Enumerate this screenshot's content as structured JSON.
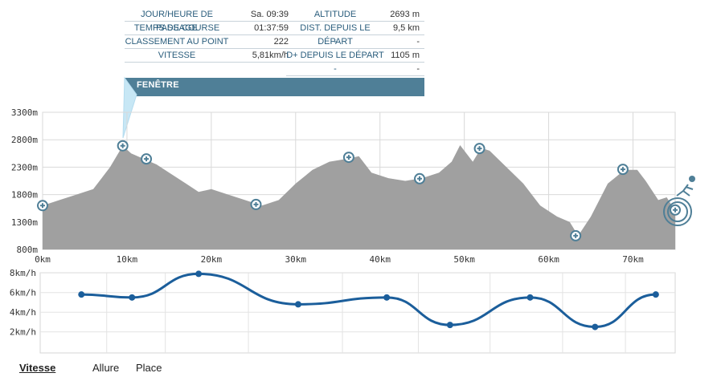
{
  "info": {
    "left_rows": [
      {
        "label": "JOUR/HEURE DE PASSAGE",
        "value": "Sa. 09:39"
      },
      {
        "label": "TEMPS DE COURSE",
        "value": "01:37:59"
      },
      {
        "label": "CLASSEMENT AU POINT",
        "value": "222"
      },
      {
        "label": "VITESSE",
        "value": "5,81km/h"
      }
    ],
    "right_rows": [
      {
        "label": "ALTITUDE",
        "value": "2693 m"
      },
      {
        "label": "DIST. DEPUIS LE DÉPART",
        "value": "9,5 km"
      },
      {
        "label": "-",
        "value": "-"
      },
      {
        "label": "D+ DEPUIS LE DÉPART",
        "value": "1105 m"
      },
      {
        "label": "-",
        "value": "-"
      }
    ]
  },
  "window_label": "FENÊTRE",
  "tabs": [
    {
      "label": "Vitesse",
      "active": true
    },
    {
      "label": "Allure",
      "active": false
    },
    {
      "label": "Place",
      "active": false
    }
  ],
  "colors": {
    "profile_fill": "#a0a0a0",
    "speed_line": "#1b5e9b",
    "marker": "#4f7f97",
    "header": "#4f7f97"
  },
  "chart_data": [
    {
      "type": "area",
      "xlabel": "",
      "ylabel": "",
      "xlim": [
        0,
        75
      ],
      "ylim": [
        800,
        3300
      ],
      "x_ticks": [
        "0km",
        "10km",
        "20km",
        "30km",
        "40km",
        "50km",
        "60km",
        "70km"
      ],
      "y_ticks": [
        "3300m",
        "2800m",
        "2300m",
        "1800m",
        "1300m",
        "800m"
      ],
      "grid": true,
      "series": [
        {
          "x": [
            0,
            2,
            4,
            6,
            8,
            9.5,
            10.5,
            12,
            13.5,
            15,
            17,
            18.5,
            20,
            22,
            24,
            26,
            28,
            30,
            32,
            34,
            36,
            37.5,
            39,
            41,
            43,
            45,
            47,
            48.5,
            49.5,
            51,
            52,
            53,
            55,
            57,
            59,
            61,
            62.5,
            63.5,
            65,
            67,
            69,
            70.5,
            71.5,
            73,
            74,
            75
          ],
          "y": [
            1600,
            1700,
            1800,
            1900,
            2300,
            2690,
            2550,
            2450,
            2350,
            2200,
            2000,
            1850,
            1900,
            1800,
            1700,
            1600,
            1700,
            2000,
            2250,
            2400,
            2450,
            2500,
            2200,
            2100,
            2050,
            2100,
            2200,
            2400,
            2700,
            2400,
            2650,
            2600,
            2300,
            2000,
            1600,
            1400,
            1300,
            1050,
            1400,
            2000,
            2250,
            2250,
            2050,
            1700,
            1750,
            1500
          ]
        }
      ],
      "checkpoints": [
        {
          "x": 0,
          "y": 1600
        },
        {
          "x": 9.5,
          "y": 2690
        },
        {
          "x": 12.3,
          "y": 2450
        },
        {
          "x": 25.3,
          "y": 1620
        },
        {
          "x": 36.3,
          "y": 2480
        },
        {
          "x": 44.7,
          "y": 2090
        },
        {
          "x": 51.8,
          "y": 2640
        },
        {
          "x": 63.2,
          "y": 1050
        },
        {
          "x": 68.8,
          "y": 2260
        },
        {
          "x": 75,
          "y": 1520
        }
      ]
    },
    {
      "type": "line",
      "xlabel": "",
      "ylabel": "",
      "ylim": [
        0,
        8
      ],
      "y_ticks": [
        "8km/h",
        "6km/h",
        "4km/h",
        "2km/h"
      ],
      "grid": true,
      "series": [
        {
          "name": "Vitesse",
          "x": [
            4.6,
            10.6,
            18.5,
            30.3,
            40.8,
            48.3,
            57.8,
            65.5,
            72.7
          ],
          "y": [
            5.8,
            5.5,
            7.9,
            4.8,
            5.5,
            2.7,
            5.5,
            2.5,
            5.8
          ]
        }
      ]
    }
  ]
}
